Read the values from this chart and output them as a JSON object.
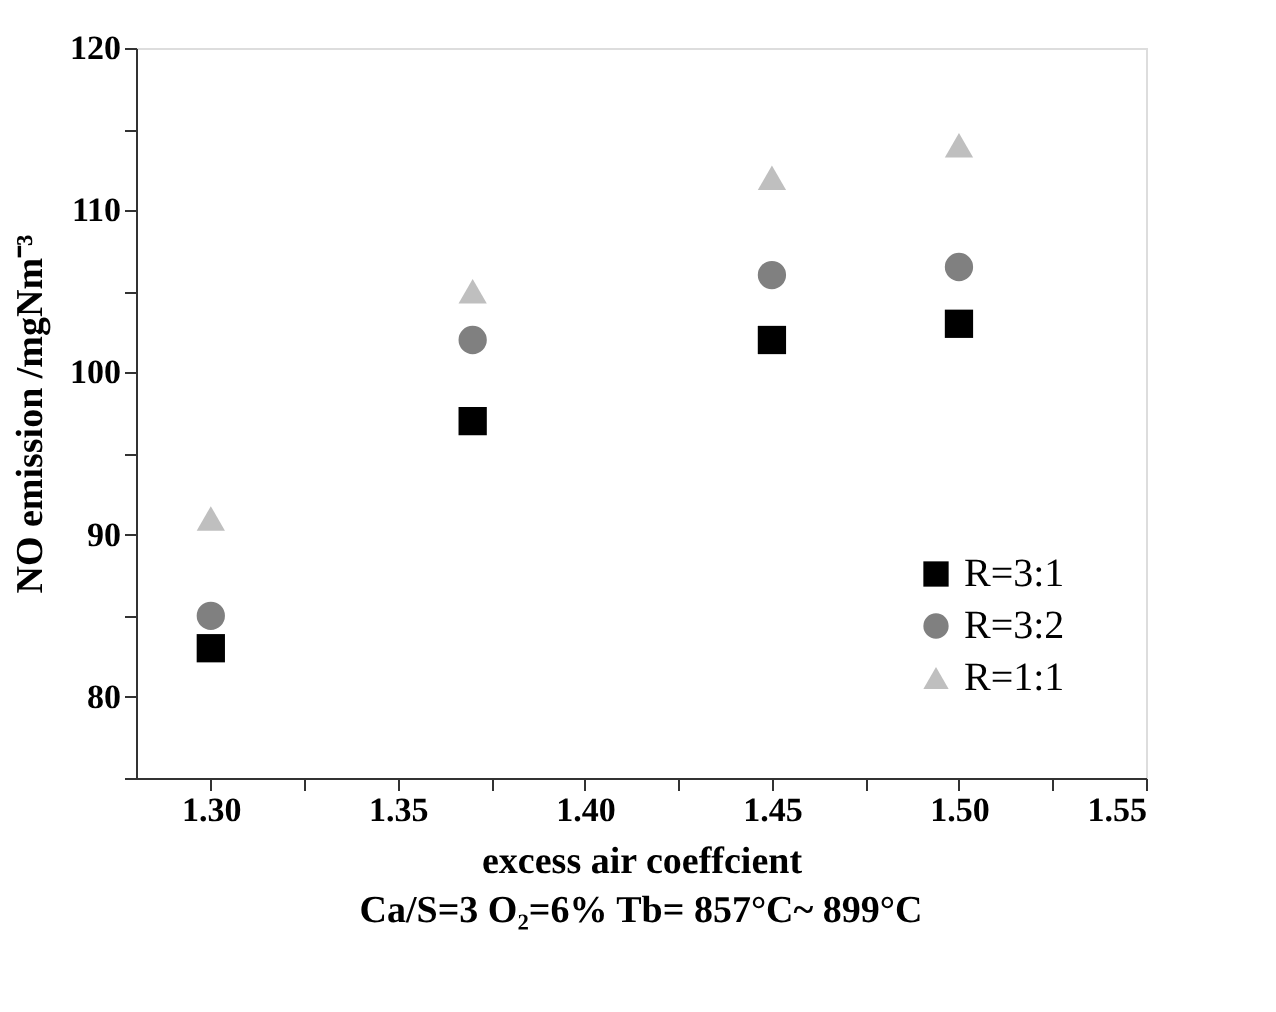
{
  "chart_data": {
    "type": "scatter",
    "xlabel": "excess air coeffcient",
    "ylabel": "NO emission  /mgNm⁻³",
    "annotations": [
      "Ca/S=3   O₂=6%  Tb= 857°C~ 899°C"
    ],
    "x": [
      1.3,
      1.37,
      1.45,
      1.5
    ],
    "series": [
      {
        "name": "R=3:1",
        "color": "#000000",
        "marker": "square",
        "values": [
          83,
          97,
          102,
          103
        ]
      },
      {
        "name": "R=3:2",
        "color": "#808080",
        "marker": "circle",
        "values": [
          85,
          102,
          106,
          106.5
        ]
      },
      {
        "name": "R=1:1",
        "color": "#bfbfbf",
        "marker": "triangle",
        "values": [
          91,
          105,
          112,
          114
        ]
      }
    ],
    "xlim": [
      1.28,
      1.55
    ],
    "xticks": [
      {
        "value": 1.3,
        "label": "1.30"
      },
      {
        "value": 1.325,
        "label": null
      },
      {
        "value": 1.35,
        "label": "1.35"
      },
      {
        "value": 1.375,
        "label": null
      },
      {
        "value": 1.4,
        "label": "1.40"
      },
      {
        "value": 1.425,
        "label": null
      },
      {
        "value": 1.45,
        "label": "1.45"
      },
      {
        "value": 1.475,
        "label": null
      },
      {
        "value": 1.5,
        "label": "1.50"
      },
      {
        "value": 1.525,
        "label": null
      },
      {
        "value": 1.55,
        "label": "1.55"
      }
    ],
    "ylim": [
      75,
      120
    ],
    "yticks": [
      {
        "value": 75,
        "label": null
      },
      80,
      {
        "value": 85,
        "label": null
      },
      90,
      {
        "value": 95,
        "label": null
      },
      100,
      {
        "value": 105,
        "label": null
      },
      110,
      {
        "value": 115,
        "label": null
      },
      120
    ],
    "grid": false,
    "legend": "bottom right"
  }
}
